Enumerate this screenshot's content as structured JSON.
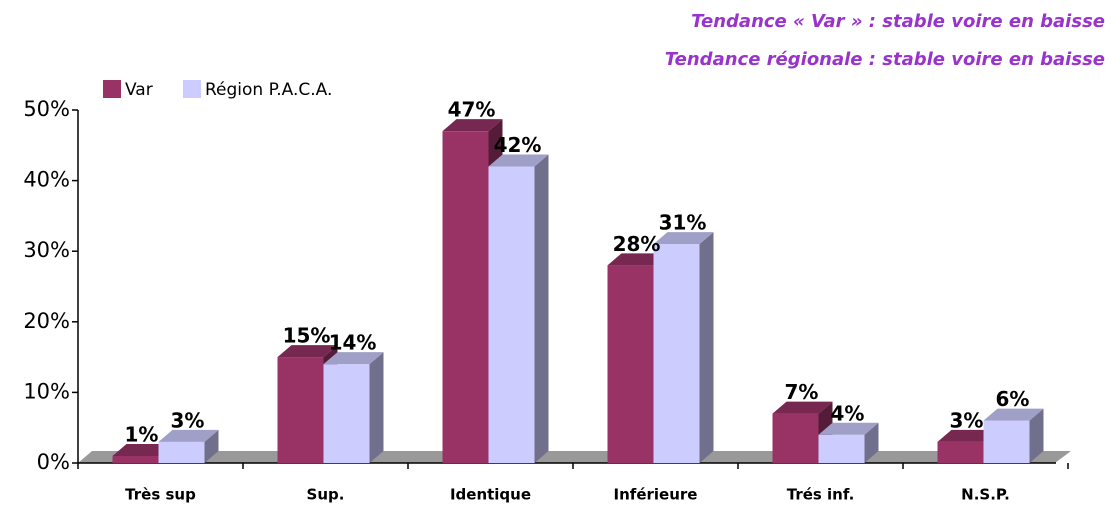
{
  "chart_data": {
    "type": "bar",
    "annotations": [
      "Tendance « Var » : stable voire en baisse",
      "Tendance régionale : stable voire en baisse"
    ],
    "categories": [
      "Très sup",
      "Sup.",
      "Identique",
      "Inférieure",
      "Trés inf.",
      "N.S.P."
    ],
    "series": [
      {
        "name": "Var",
        "color": "#993366",
        "values": [
          1,
          15,
          47,
          28,
          7,
          3
        ],
        "value_labels": [
          "1%",
          "15%",
          "47%",
          "28%",
          "7%",
          "3%"
        ]
      },
      {
        "name": "Région P.A.C.A.",
        "color": "#ccccff",
        "values": [
          3,
          14,
          42,
          31,
          4,
          6
        ],
        "value_labels": [
          "3%",
          "14%",
          "42%",
          "31%",
          "4%",
          "6%"
        ]
      }
    ],
    "ylim": [
      0,
      50
    ],
    "yticks": [
      {
        "value": 0,
        "label": "0%"
      },
      {
        "value": 10,
        "label": "10%"
      },
      {
        "value": 20,
        "label": "20%"
      },
      {
        "value": 30,
        "label": "30%"
      },
      {
        "value": 40,
        "label": "40%"
      },
      {
        "value": 50,
        "label": "50%"
      }
    ]
  }
}
